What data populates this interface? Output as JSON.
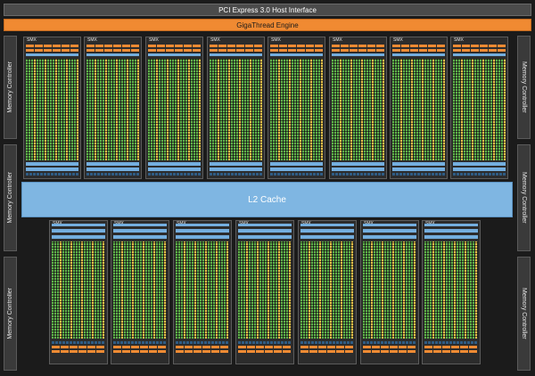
{
  "header": {
    "pcie_label": "PCI Express 3.0 Host Interface",
    "gigathread_label": "GigaThread Engine"
  },
  "l2_cache_label": "L2 Cache",
  "memory_controllers": [
    {
      "label": "Memory Controller"
    },
    {
      "label": "Memory Controller"
    },
    {
      "label": "Memory Controller"
    },
    {
      "label": "Memory Controller"
    },
    {
      "label": "Memory Controller"
    },
    {
      "label": "Memory Controller"
    }
  ],
  "smx_top": [
    {
      "label": "SMX"
    },
    {
      "label": "SMX"
    },
    {
      "label": "SMX"
    },
    {
      "label": "SMX"
    },
    {
      "label": "SMX"
    },
    {
      "label": "SMX"
    },
    {
      "label": "SMX"
    },
    {
      "label": "SMX"
    }
  ],
  "smx_bottom": [
    {
      "label": "SMX"
    },
    {
      "label": "SMX"
    },
    {
      "label": "SMX"
    },
    {
      "label": "SMX"
    },
    {
      "label": "SMX"
    },
    {
      "label": "SMX"
    },
    {
      "label": "SMX"
    }
  ],
  "colors": {
    "core": "#5fb34a",
    "special_unit": "#e9c34a",
    "scheduler": "#ee8a33",
    "cache": "#74aede",
    "texture": "#2f5c84"
  }
}
